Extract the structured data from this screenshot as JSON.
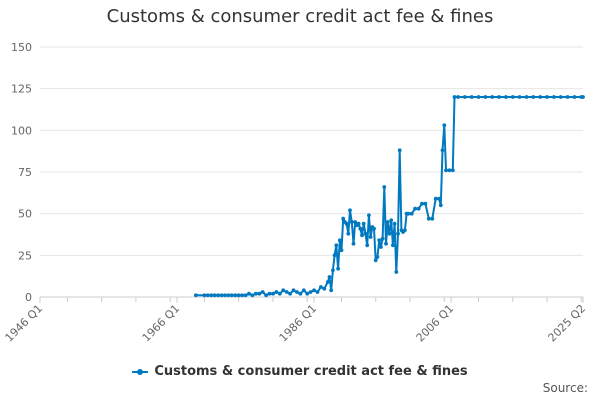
{
  "chart_data": {
    "type": "line",
    "title": "Customs & consumer credit act fee & fines",
    "source_label": "Source:",
    "legend_placement": "bottom",
    "grid": true,
    "ylim": [
      0,
      150
    ],
    "y_ticks": [
      "0",
      "25",
      "50",
      "75",
      "100",
      "125",
      "150"
    ],
    "x_range": [
      "1946 Q1",
      "2025 Q2"
    ],
    "x_ticks": [
      "1946 Q1",
      "1966 Q1",
      "1986 Q1",
      "2006 Q1",
      "2025 Q2"
    ],
    "series": [
      {
        "name": "Customs & consumer credit act fee & fines",
        "color": "#0079C1",
        "points": [
          [
            "1968 Q4",
            1
          ],
          [
            "1970 Q1",
            1
          ],
          [
            "1970 Q3",
            1
          ],
          [
            "1971 Q1",
            1
          ],
          [
            "1971 Q3",
            1
          ],
          [
            "1972 Q1",
            1
          ],
          [
            "1972 Q3",
            1
          ],
          [
            "1973 Q1",
            1
          ],
          [
            "1973 Q3",
            1
          ],
          [
            "1974 Q1",
            1
          ],
          [
            "1974 Q3",
            1
          ],
          [
            "1975 Q1",
            1
          ],
          [
            "1975 Q3",
            1
          ],
          [
            "1976 Q1",
            1
          ],
          [
            "1976 Q3",
            2
          ],
          [
            "1977 Q1",
            1
          ],
          [
            "1977 Q3",
            2
          ],
          [
            "1978 Q1",
            2
          ],
          [
            "1978 Q3",
            3
          ],
          [
            "1979 Q1",
            1
          ],
          [
            "1979 Q3",
            2
          ],
          [
            "1980 Q1",
            2
          ],
          [
            "1980 Q3",
            3
          ],
          [
            "1981 Q1",
            2
          ],
          [
            "1981 Q3",
            4
          ],
          [
            "1982 Q1",
            3
          ],
          [
            "1982 Q3",
            2
          ],
          [
            "1983 Q1",
            4
          ],
          [
            "1983 Q3",
            3
          ],
          [
            "1984 Q1",
            2
          ],
          [
            "1984 Q3",
            4
          ],
          [
            "1985 Q1",
            2
          ],
          [
            "1985 Q3",
            3
          ],
          [
            "1986 Q1",
            4
          ],
          [
            "1986 Q3",
            3
          ],
          [
            "1987 Q1",
            6
          ],
          [
            "1987 Q3",
            5
          ],
          [
            "1988 Q1",
            9
          ],
          [
            "1988 Q2",
            12
          ],
          [
            "1988 Q3",
            4
          ],
          [
            "1988 Q4",
            16
          ],
          [
            "1989 Q1",
            25
          ],
          [
            "1989 Q2",
            31
          ],
          [
            "1989 Q3",
            17
          ],
          [
            "1989 Q4",
            34
          ],
          [
            "1990 Q1",
            28
          ],
          [
            "1990 Q2",
            47
          ],
          [
            "1990 Q3",
            45
          ],
          [
            "1990 Q4",
            44
          ],
          [
            "1991 Q1",
            38
          ],
          [
            "1991 Q2",
            52
          ],
          [
            "1991 Q3",
            45
          ],
          [
            "1991 Q4",
            32
          ],
          [
            "1992 Q1",
            45
          ],
          [
            "1992 Q2",
            43
          ],
          [
            "1992 Q3",
            44
          ],
          [
            "1992 Q4",
            41
          ],
          [
            "1993 Q1",
            37
          ],
          [
            "1993 Q2",
            44
          ],
          [
            "1993 Q3",
            38
          ],
          [
            "1993 Q4",
            31
          ],
          [
            "1994 Q1",
            49
          ],
          [
            "1994 Q2",
            36
          ],
          [
            "1994 Q3",
            42
          ],
          [
            "1994 Q4",
            41
          ],
          [
            "1995 Q1",
            22
          ],
          [
            "1995 Q2",
            24
          ],
          [
            "1995 Q3",
            34
          ],
          [
            "1995 Q4",
            30
          ],
          [
            "1996 Q1",
            35
          ],
          [
            "1996 Q2",
            66
          ],
          [
            "1996 Q3",
            32
          ],
          [
            "1996 Q4",
            45
          ],
          [
            "1997 Q1",
            38
          ],
          [
            "1997 Q2",
            46
          ],
          [
            "1997 Q3",
            31
          ],
          [
            "1997 Q4",
            44
          ],
          [
            "1998 Q1",
            15
          ],
          [
            "1998 Q2",
            38
          ],
          [
            "1998 Q3",
            88
          ],
          [
            "1998 Q4",
            40
          ],
          [
            "1999 Q1",
            39
          ],
          [
            "1999 Q2",
            40
          ],
          [
            "1999 Q3",
            50
          ],
          [
            "1999 Q4",
            50
          ],
          [
            "2000 Q2",
            50
          ],
          [
            "2000 Q4",
            53
          ],
          [
            "2001 Q2",
            53
          ],
          [
            "2001 Q4",
            56
          ],
          [
            "2002 Q2",
            56
          ],
          [
            "2002 Q4",
            47
          ],
          [
            "2003 Q2",
            47
          ],
          [
            "2003 Q4",
            59
          ],
          [
            "2004 Q2",
            59
          ],
          [
            "2004 Q3",
            55
          ],
          [
            "2004 Q4",
            88
          ],
          [
            "2005 Q1",
            103
          ],
          [
            "2005 Q2",
            76
          ],
          [
            "2005 Q4",
            76
          ],
          [
            "2006 Q2",
            76
          ],
          [
            "2006 Q3",
            120
          ],
          [
            "2007 Q1",
            120
          ],
          [
            "2008 Q1",
            120
          ],
          [
            "2009 Q1",
            120
          ],
          [
            "2010 Q1",
            120
          ],
          [
            "2011 Q1",
            120
          ],
          [
            "2012 Q1",
            120
          ],
          [
            "2013 Q1",
            120
          ],
          [
            "2014 Q1",
            120
          ],
          [
            "2015 Q1",
            120
          ],
          [
            "2016 Q1",
            120
          ],
          [
            "2017 Q1",
            120
          ],
          [
            "2018 Q1",
            120
          ],
          [
            "2019 Q1",
            120
          ],
          [
            "2020 Q1",
            120
          ],
          [
            "2021 Q1",
            120
          ],
          [
            "2022 Q1",
            120
          ],
          [
            "2023 Q1",
            120
          ],
          [
            "2024 Q1",
            120
          ],
          [
            "2025 Q1",
            120
          ],
          [
            "2025 Q2",
            120
          ]
        ]
      }
    ]
  }
}
